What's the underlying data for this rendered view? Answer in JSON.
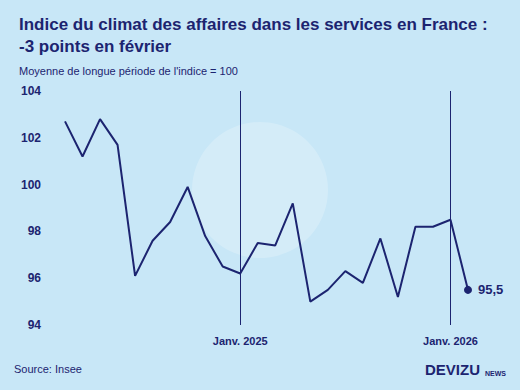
{
  "chart_data": {
    "type": "line",
    "title": "Indice du climat des affaires dans les services en France : -3 points en février",
    "subtitle": "Moyenne de longue période de l'indice = 100",
    "source": "Source: Insee",
    "brand": "DEVIZU",
    "brand_suffix": "NEWS",
    "categories": [
      null,
      null,
      null,
      null,
      null,
      null,
      null,
      null,
      null,
      null,
      "Janv. 2025",
      null,
      null,
      null,
      null,
      null,
      null,
      null,
      null,
      null,
      null,
      null,
      "Janv. 2026",
      null
    ],
    "values": [
      102.7,
      101.2,
      102.8,
      101.7,
      96.1,
      97.6,
      98.4,
      99.9,
      97.8,
      96.5,
      96.2,
      97.5,
      97.4,
      99.2,
      95.0,
      95.5,
      96.3,
      95.8,
      97.7,
      95.2,
      98.2,
      98.2,
      98.5,
      95.5
    ],
    "value_labels": [
      null,
      null,
      null,
      null,
      null,
      null,
      null,
      null,
      null,
      null,
      null,
      null,
      null,
      null,
      null,
      null,
      null,
      null,
      null,
      null,
      null,
      null,
      null,
      "95,5"
    ],
    "color": "#1c2470",
    "ylim": [
      94,
      104
    ],
    "yticks": [
      94,
      96,
      98,
      100,
      102,
      104
    ],
    "grid": false
  }
}
